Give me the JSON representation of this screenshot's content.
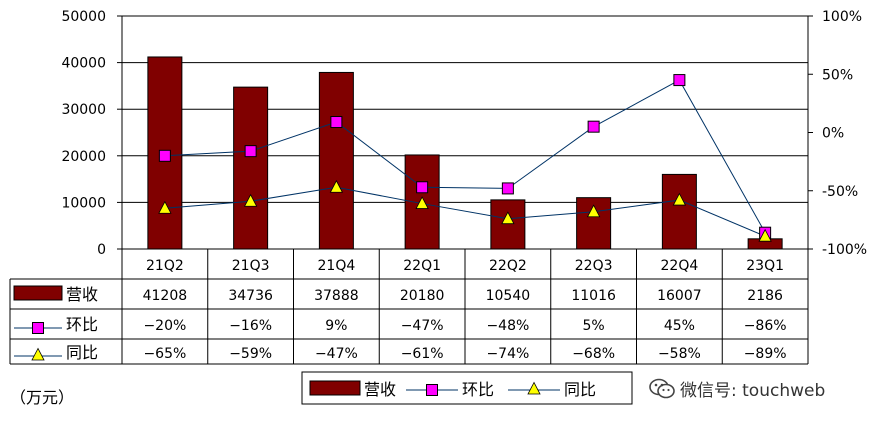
{
  "chart_data": {
    "type": "bar",
    "categories": [
      "21Q2",
      "21Q3",
      "21Q4",
      "22Q1",
      "22Q2",
      "22Q3",
      "22Q4",
      "23Q1"
    ],
    "series": [
      {
        "name": "营收",
        "type": "bar",
        "axis": "left",
        "values": [
          41208,
          34736,
          37888,
          20180,
          10540,
          11016,
          16007,
          2186
        ],
        "labels": [
          "41208",
          "34736",
          "37888",
          "20180",
          "10540",
          "11016",
          "16007",
          "2186"
        ],
        "color": "#800000"
      },
      {
        "name": "环比",
        "type": "line",
        "axis": "right",
        "marker": "square",
        "values": [
          -20,
          -16,
          9,
          -47,
          -48,
          5,
          45,
          -86
        ],
        "labels": [
          "-20%",
          "-16%",
          "9%",
          "-47%",
          "-48%",
          "5%",
          "45%",
          "-86%"
        ],
        "color": "#ff00ff"
      },
      {
        "name": "同比",
        "type": "line",
        "axis": "right",
        "marker": "triangle",
        "values": [
          -65,
          -59,
          -47,
          -61,
          -74,
          -68,
          -58,
          -89
        ],
        "labels": [
          "-65%",
          "-59%",
          "-47%",
          "-61%",
          "-74%",
          "-68%",
          "-58%",
          "-89%"
        ],
        "color": "#ffff00"
      }
    ],
    "y_left": {
      "min": 0,
      "max": 50000,
      "ticks": [
        "0",
        "10000",
        "20000",
        "30000",
        "40000",
        "50000"
      ]
    },
    "y_right": {
      "min": -100,
      "max": 100,
      "ticks": [
        "-100%",
        "-50%",
        "0%",
        "50%",
        "100%"
      ]
    },
    "grid": true,
    "legend_position": "bottom",
    "line_color": "#003366"
  },
  "unit_label": "（万元）",
  "watermark": "微信号: touchweb"
}
